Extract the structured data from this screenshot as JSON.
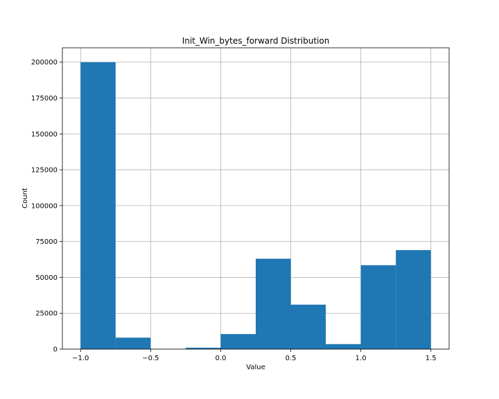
{
  "chart_data": {
    "type": "bar",
    "title": "Init_Win_bytes_forward Distribution",
    "xlabel": "Value",
    "ylabel": "Count",
    "xlim": [
      -1.13,
      1.63
    ],
    "ylim": [
      0,
      210000
    ],
    "grid": true,
    "bar_color": "#1f77b4",
    "bins": [
      {
        "x0": -1.0,
        "x1": -0.75,
        "count": 200000
      },
      {
        "x0": -0.75,
        "x1": -0.5,
        "count": 8000
      },
      {
        "x0": -0.5,
        "x1": -0.25,
        "count": 0
      },
      {
        "x0": -0.25,
        "x1": 0.0,
        "count": 1000
      },
      {
        "x0": 0.0,
        "x1": 0.25,
        "count": 10500
      },
      {
        "x0": 0.25,
        "x1": 0.5,
        "count": 63000
      },
      {
        "x0": 0.5,
        "x1": 0.75,
        "count": 31000
      },
      {
        "x0": 0.75,
        "x1": 1.0,
        "count": 3500
      },
      {
        "x0": 1.0,
        "x1": 1.25,
        "count": 58500
      },
      {
        "x0": 1.25,
        "x1": 1.5,
        "count": 69000
      }
    ],
    "xticks": [
      {
        "value": -1.0,
        "label": "−1.0"
      },
      {
        "value": -0.5,
        "label": "−0.5"
      },
      {
        "value": 0.0,
        "label": "0.0"
      },
      {
        "value": 0.5,
        "label": "0.5"
      },
      {
        "value": 1.0,
        "label": "1.0"
      },
      {
        "value": 1.5,
        "label": "1.5"
      }
    ],
    "yticks": [
      {
        "value": 0,
        "label": "0"
      },
      {
        "value": 25000,
        "label": "25000"
      },
      {
        "value": 50000,
        "label": "50000"
      },
      {
        "value": 75000,
        "label": "75000"
      },
      {
        "value": 100000,
        "label": "100000"
      },
      {
        "value": 125000,
        "label": "125000"
      },
      {
        "value": 150000,
        "label": "150000"
      },
      {
        "value": 175000,
        "label": "175000"
      },
      {
        "value": 200000,
        "label": "200000"
      }
    ]
  }
}
